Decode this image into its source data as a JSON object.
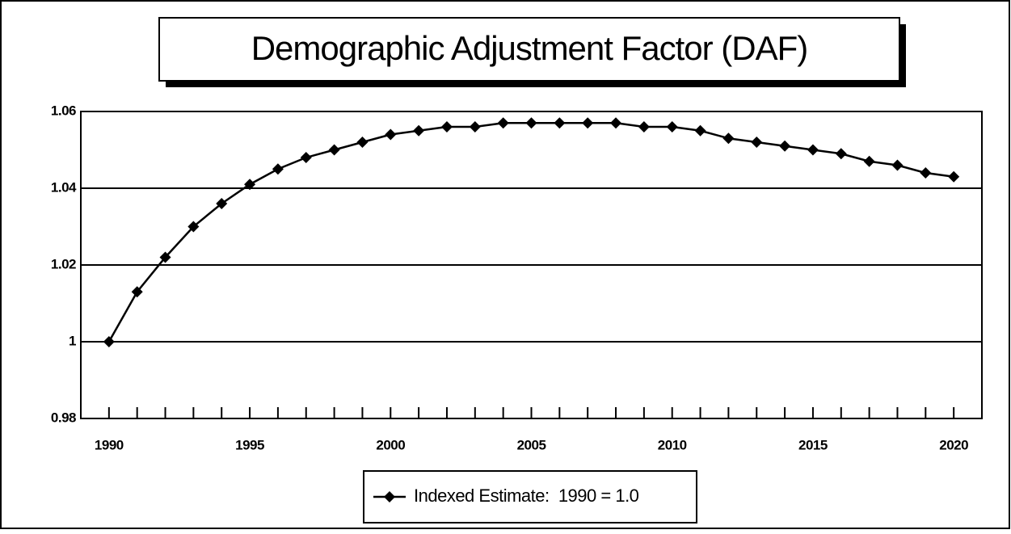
{
  "chart_data": {
    "type": "line",
    "title": "Demographic Adjustment Factor (DAF)",
    "x": [
      1990,
      1991,
      1992,
      1993,
      1994,
      1995,
      1996,
      1997,
      1998,
      1999,
      2000,
      2001,
      2002,
      2003,
      2004,
      2005,
      2006,
      2007,
      2008,
      2009,
      2010,
      2011,
      2012,
      2013,
      2014,
      2015,
      2016,
      2017,
      2018,
      2019,
      2020
    ],
    "series": [
      {
        "name": "Indexed Estimate:  1990 = 1.0",
        "color": "#000000",
        "values": [
          1.0,
          1.013,
          1.022,
          1.03,
          1.036,
          1.041,
          1.045,
          1.048,
          1.05,
          1.052,
          1.054,
          1.055,
          1.056,
          1.056,
          1.057,
          1.057,
          1.057,
          1.057,
          1.057,
          1.056,
          1.056,
          1.055,
          1.053,
          1.052,
          1.051,
          1.05,
          1.049,
          1.047,
          1.046,
          1.044,
          1.043
        ]
      }
    ],
    "xlim": [
      1989,
      2021
    ],
    "xticks": [
      1990,
      1995,
      2000,
      2005,
      2010,
      2015,
      2020
    ],
    "ylim": [
      0.98,
      1.06
    ],
    "yticks": [
      0.98,
      1,
      1.02,
      1.04,
      1.06
    ],
    "grid": true
  }
}
